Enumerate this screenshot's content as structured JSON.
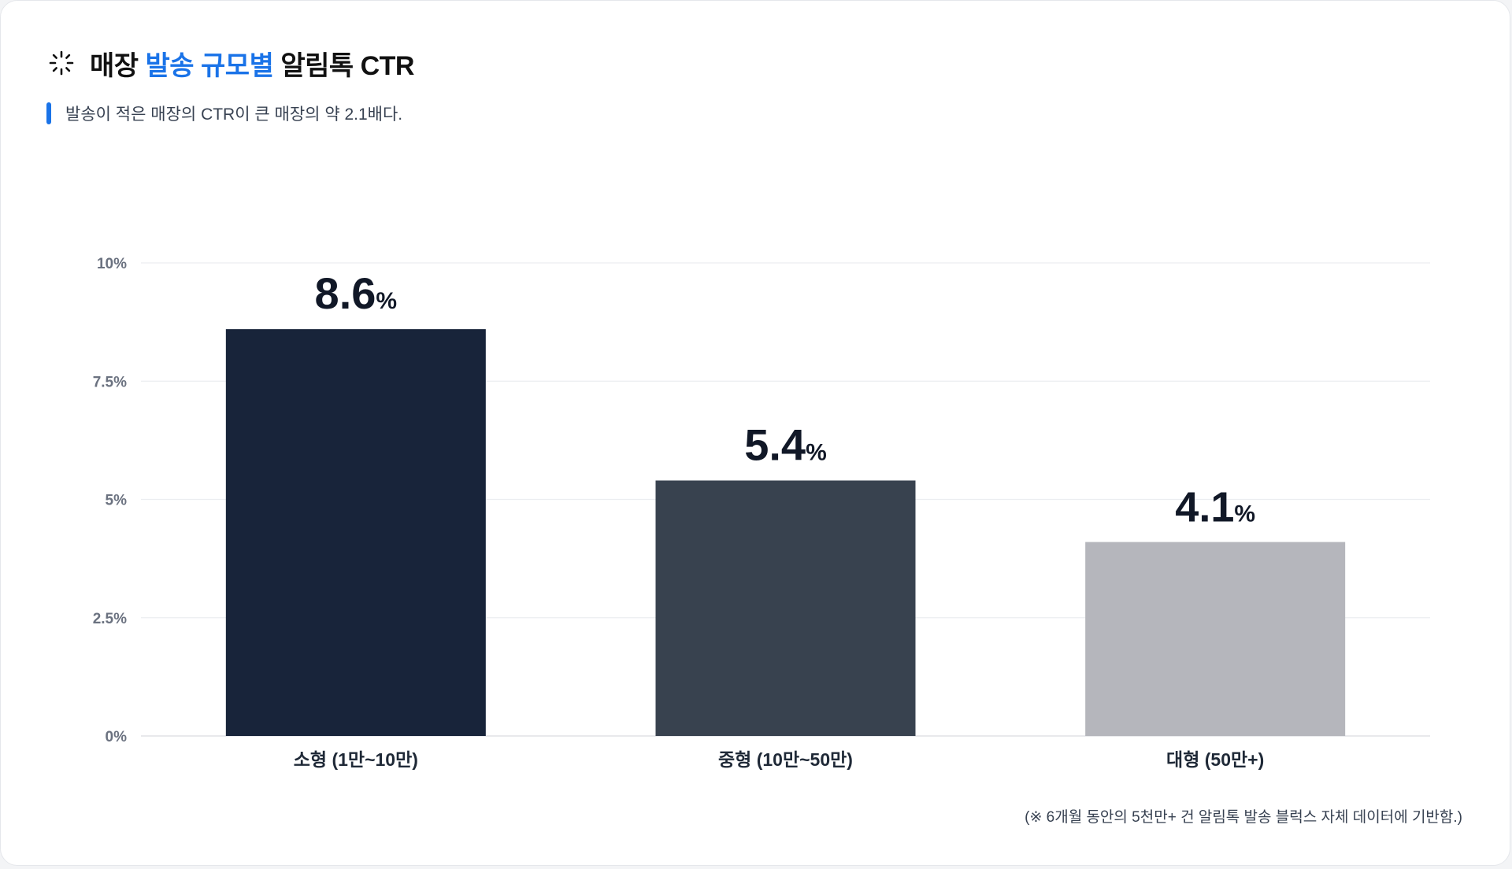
{
  "header": {
    "title_part1": "매장 ",
    "title_accent": "발송 규모별",
    "title_part2": " 알림톡 CTR",
    "subtitle": "발송이 적은 매장의 CTR이 큰 매장의 약 2.1배다.",
    "accent_color": "#1a73e8",
    "icon": "spinner-icon"
  },
  "chart_data": {
    "type": "bar",
    "title": "매장 발송 규모별 알림톡 CTR",
    "categories": [
      "소형 (1만~10만)",
      "중형 (10만~50만)",
      "대형 (50만+)"
    ],
    "values": [
      8.6,
      5.4,
      4.1
    ],
    "value_labels": [
      "8.6",
      "5.4",
      "4.1"
    ],
    "value_unit": "%",
    "colors": [
      "#18243a",
      "#38424f",
      "#b5b6bc"
    ],
    "yticks": [
      "0%",
      "2.5%",
      "5%",
      "7.5%",
      "10%"
    ],
    "ytick_values": [
      0,
      2.5,
      5,
      7.5,
      10
    ],
    "ylim": [
      0,
      10
    ],
    "xlabel": "",
    "ylabel": "",
    "grid": true,
    "legend": "none"
  },
  "footnote": "(※ 6개월 동안의 5천만+ 건 알림톡 발송 블럭스 자체 데이터에 기반함.)"
}
